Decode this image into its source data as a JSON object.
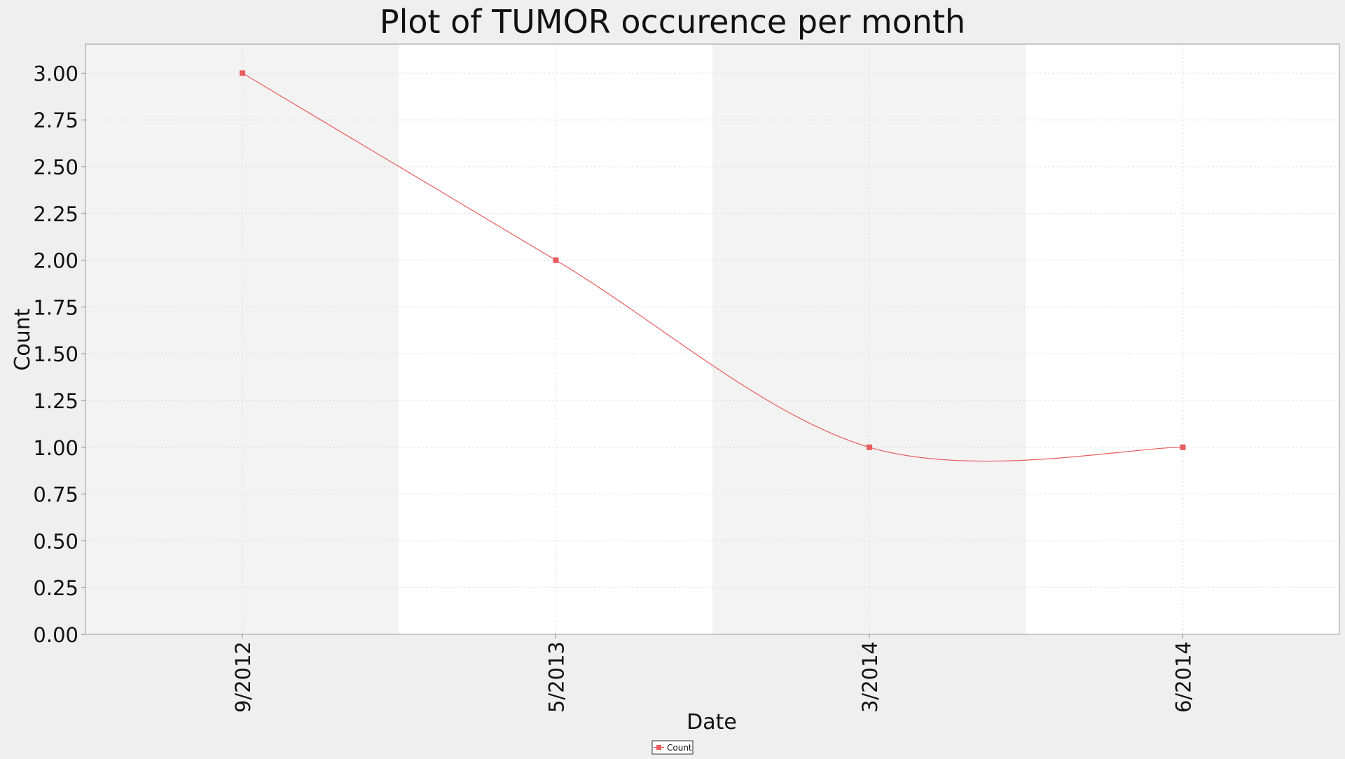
{
  "chart_data": {
    "type": "line",
    "title": "Plot of TUMOR occurence per month",
    "xlabel": "Date",
    "ylabel": "Count",
    "categories": [
      "9/2012",
      "5/2013",
      "3/2014",
      "6/2014"
    ],
    "series": [
      {
        "name": "Count",
        "values": [
          3,
          2,
          1,
          1
        ]
      }
    ],
    "ylim": [
      0,
      3
    ],
    "yticks": [
      "0.00",
      "0.25",
      "0.50",
      "0.75",
      "1.00",
      "1.25",
      "1.50",
      "1.75",
      "2.00",
      "2.25",
      "2.50",
      "2.75",
      "3.00"
    ],
    "curve": "smooth",
    "grid": true,
    "legend_position": "bottom-center",
    "colors": {
      "series": "#e85c5c",
      "band_shaded": "#f3f3f3",
      "band_plain": "#ffffff",
      "grid": "#dddddd",
      "axis": "#888888",
      "background": "#efefef"
    }
  }
}
